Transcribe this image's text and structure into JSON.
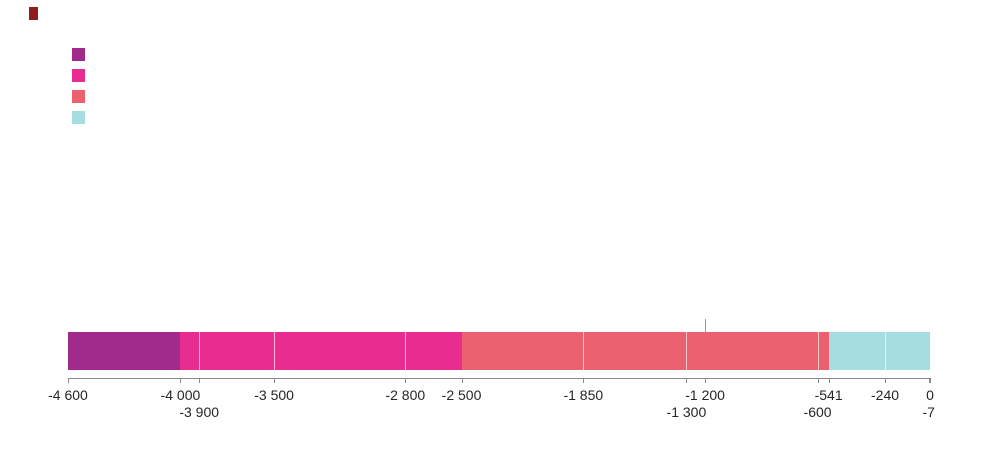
{
  "title_mark": {
    "color": "#8f1d1d"
  },
  "legend": {
    "swatches": [
      {
        "color": "#a12b8d"
      },
      {
        "color": "#e82c90"
      },
      {
        "color": "#ea6170"
      },
      {
        "color": "#a6dde0"
      }
    ]
  },
  "chart_data": {
    "type": "bar",
    "subtype": "horizontal-stacked-timeline",
    "title": "",
    "xlabel": "",
    "ylabel": "",
    "xlim": [
      -4600,
      0
    ],
    "axis_color": "#8c8c8c",
    "label_color": "#262626",
    "segments": [
      {
        "start": -4600,
        "end": -4000,
        "color": "#a12b8d"
      },
      {
        "start": -4000,
        "end": -2500,
        "color": "#e82c90"
      },
      {
        "start": -2500,
        "end": -541,
        "color": "#ea6170"
      },
      {
        "start": -541,
        "end": 0,
        "color": "#a6dde0"
      }
    ],
    "boundaries": [
      -3900,
      -3500,
      -2800,
      -1850,
      -1300,
      -600,
      -240
    ],
    "marker_value": -1200,
    "ticks": [
      {
        "value": -4600,
        "label": "-4 600",
        "row": 1
      },
      {
        "value": -4000,
        "label": "-4 000",
        "row": 1
      },
      {
        "value": -3900,
        "label": "-3 900",
        "row": 2
      },
      {
        "value": -3500,
        "label": "-3 500",
        "row": 1
      },
      {
        "value": -2800,
        "label": "-2 800",
        "row": 1
      },
      {
        "value": -2500,
        "label": "-2 500",
        "row": 1
      },
      {
        "value": -1850,
        "label": "-1 850",
        "row": 1
      },
      {
        "value": -1300,
        "label": "-1 300",
        "row": 2
      },
      {
        "value": -1200,
        "label": "-1 200",
        "row": 1
      },
      {
        "value": -600,
        "label": "-600",
        "row": 2
      },
      {
        "value": -541,
        "label": "-541",
        "row": 1
      },
      {
        "value": -240,
        "label": "-240",
        "row": 1
      },
      {
        "value": -7,
        "label": "-7",
        "row": 2
      },
      {
        "value": 0,
        "label": "0",
        "row": 1
      }
    ]
  }
}
